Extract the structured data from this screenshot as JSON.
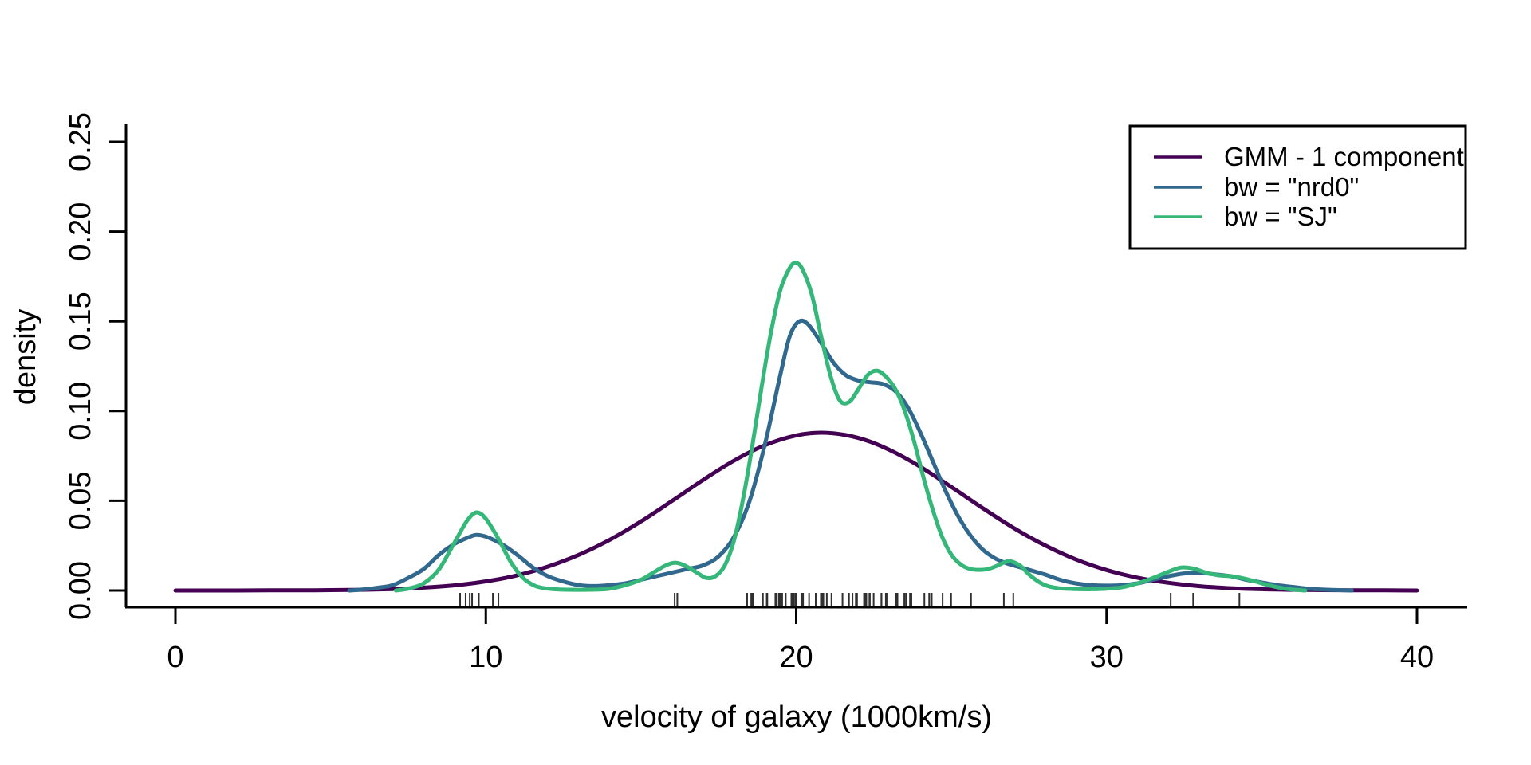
{
  "chart_data": {
    "type": "line",
    "title": "",
    "xlabel": "velocity of galaxy (1000km/s)",
    "ylabel": "density",
    "xlim": [
      0,
      40
    ],
    "ylim": [
      0,
      0.25
    ],
    "x_ticks": [
      0,
      10,
      20,
      30,
      40
    ],
    "y_ticks": [
      "0.00",
      "0.05",
      "0.10",
      "0.15",
      "0.20",
      "0.25"
    ],
    "grid": false,
    "legend_position": "top-right",
    "series": [
      {
        "name": "GMM - 1 component",
        "color": "#440154",
        "points": [
          [
            0,
            0
          ],
          [
            1,
            0
          ],
          [
            2,
            0
          ],
          [
            3,
            0.0001
          ],
          [
            4,
            0.0001
          ],
          [
            5,
            0.0002
          ],
          [
            6,
            0.0004
          ],
          [
            7,
            0.0008
          ],
          [
            8,
            0.0016
          ],
          [
            9,
            0.0029
          ],
          [
            10,
            0.0051
          ],
          [
            11,
            0.0084
          ],
          [
            12,
            0.0133
          ],
          [
            13,
            0.0199
          ],
          [
            14,
            0.0283
          ],
          [
            15,
            0.0385
          ],
          [
            16,
            0.0499
          ],
          [
            17,
            0.0616
          ],
          [
            18,
            0.0724
          ],
          [
            19,
            0.081
          ],
          [
            20,
            0.0864
          ],
          [
            20.8,
            0.0879
          ],
          [
            21.6,
            0.0866
          ],
          [
            22.4,
            0.0828
          ],
          [
            23.2,
            0.0767
          ],
          [
            24,
            0.0689
          ],
          [
            25,
            0.0577
          ],
          [
            26,
            0.046
          ],
          [
            27,
            0.0349
          ],
          [
            28,
            0.0253
          ],
          [
            29,
            0.0174
          ],
          [
            30,
            0.0114
          ],
          [
            31,
            0.0071
          ],
          [
            32,
            0.0043
          ],
          [
            33,
            0.0024
          ],
          [
            34,
            0.0013
          ],
          [
            35,
            0.0007
          ],
          [
            36,
            0.0004
          ],
          [
            37,
            0.0002
          ],
          [
            38,
            0.0001
          ],
          [
            39,
            0.0001
          ],
          [
            40,
            0
          ]
        ]
      },
      {
        "name": "bw = \"nrd0\"",
        "color": "#31688E",
        "points": [
          [
            5.6,
            0
          ],
          [
            6,
            0.0005
          ],
          [
            6.5,
            0.0015
          ],
          [
            7,
            0.003
          ],
          [
            7.5,
            0.007
          ],
          [
            8,
            0.012
          ],
          [
            8.5,
            0.02
          ],
          [
            9,
            0.026
          ],
          [
            9.5,
            0.03
          ],
          [
            9.7,
            0.031
          ],
          [
            10,
            0.03
          ],
          [
            10.5,
            0.026
          ],
          [
            11,
            0.02
          ],
          [
            11.5,
            0.013
          ],
          [
            12,
            0.008
          ],
          [
            12.5,
            0.005
          ],
          [
            13,
            0.003
          ],
          [
            13.5,
            0.0025
          ],
          [
            14,
            0.003
          ],
          [
            14.5,
            0.004
          ],
          [
            15,
            0.006
          ],
          [
            15.5,
            0.008
          ],
          [
            16,
            0.01
          ],
          [
            16.5,
            0.012
          ],
          [
            17,
            0.014
          ],
          [
            17.5,
            0.019
          ],
          [
            18,
            0.03
          ],
          [
            18.5,
            0.05
          ],
          [
            19,
            0.082
          ],
          [
            19.5,
            0.121
          ],
          [
            19.8,
            0.142
          ],
          [
            20.1,
            0.15
          ],
          [
            20.4,
            0.148
          ],
          [
            20.8,
            0.138
          ],
          [
            21.2,
            0.127
          ],
          [
            21.6,
            0.12
          ],
          [
            22,
            0.117
          ],
          [
            22.4,
            0.116
          ],
          [
            22.8,
            0.115
          ],
          [
            23.2,
            0.111
          ],
          [
            23.6,
            0.102
          ],
          [
            24,
            0.088
          ],
          [
            24.4,
            0.072
          ],
          [
            24.8,
            0.056
          ],
          [
            25.2,
            0.042
          ],
          [
            25.6,
            0.031
          ],
          [
            26,
            0.023
          ],
          [
            26.4,
            0.018
          ],
          [
            26.8,
            0.015
          ],
          [
            27.2,
            0.013
          ],
          [
            27.6,
            0.011
          ],
          [
            28,
            0.009
          ],
          [
            28.5,
            0.006
          ],
          [
            29,
            0.004
          ],
          [
            29.5,
            0.003
          ],
          [
            30,
            0.0027
          ],
          [
            30.5,
            0.003
          ],
          [
            31,
            0.004
          ],
          [
            31.5,
            0.006
          ],
          [
            32,
            0.008
          ],
          [
            32.5,
            0.0095
          ],
          [
            33,
            0.0098
          ],
          [
            33.5,
            0.009
          ],
          [
            34,
            0.008
          ],
          [
            34.5,
            0.006
          ],
          [
            35,
            0.0045
          ],
          [
            35.5,
            0.003
          ],
          [
            36,
            0.002
          ],
          [
            36.5,
            0.001
          ],
          [
            37,
            0.0005
          ],
          [
            37.5,
            0.0002
          ],
          [
            37.9,
            0
          ]
        ]
      },
      {
        "name": "bw = \"SJ\"",
        "color": "#35B779",
        "points": [
          [
            7.1,
            0
          ],
          [
            7.5,
            0.001
          ],
          [
            8,
            0.004
          ],
          [
            8.5,
            0.012
          ],
          [
            9,
            0.027
          ],
          [
            9.4,
            0.039
          ],
          [
            9.7,
            0.0435
          ],
          [
            10,
            0.04
          ],
          [
            10.4,
            0.029
          ],
          [
            10.8,
            0.016
          ],
          [
            11.2,
            0.007
          ],
          [
            11.6,
            0.0025
          ],
          [
            12,
            0.001
          ],
          [
            12.5,
            0.0005
          ],
          [
            13,
            0.0004
          ],
          [
            13.5,
            0.0005
          ],
          [
            14,
            0.001
          ],
          [
            14.5,
            0.003
          ],
          [
            15,
            0.006
          ],
          [
            15.4,
            0.01
          ],
          [
            15.8,
            0.014
          ],
          [
            16.1,
            0.0155
          ],
          [
            16.4,
            0.014
          ],
          [
            16.8,
            0.01
          ],
          [
            17.1,
            0.007
          ],
          [
            17.4,
            0.008
          ],
          [
            17.7,
            0.014
          ],
          [
            18,
            0.028
          ],
          [
            18.3,
            0.052
          ],
          [
            18.6,
            0.082
          ],
          [
            18.9,
            0.115
          ],
          [
            19.2,
            0.145
          ],
          [
            19.5,
            0.168
          ],
          [
            19.8,
            0.18
          ],
          [
            20,
            0.1825
          ],
          [
            20.2,
            0.179
          ],
          [
            20.5,
            0.165
          ],
          [
            20.8,
            0.142
          ],
          [
            21.1,
            0.12
          ],
          [
            21.4,
            0.106
          ],
          [
            21.7,
            0.105
          ],
          [
            22,
            0.112
          ],
          [
            22.3,
            0.12
          ],
          [
            22.6,
            0.1225
          ],
          [
            22.9,
            0.119
          ],
          [
            23.2,
            0.112
          ],
          [
            23.5,
            0.1
          ],
          [
            23.8,
            0.083
          ],
          [
            24.1,
            0.063
          ],
          [
            24.4,
            0.045
          ],
          [
            24.7,
            0.03
          ],
          [
            25,
            0.02
          ],
          [
            25.3,
            0.0145
          ],
          [
            25.6,
            0.012
          ],
          [
            25.9,
            0.0115
          ],
          [
            26.2,
            0.012
          ],
          [
            26.5,
            0.014
          ],
          [
            26.85,
            0.0164
          ],
          [
            27.2,
            0.014
          ],
          [
            27.5,
            0.009
          ],
          [
            27.8,
            0.005
          ],
          [
            28.1,
            0.0025
          ],
          [
            28.5,
            0.0012
          ],
          [
            29,
            0.0008
          ],
          [
            29.5,
            0.0007
          ],
          [
            30,
            0.001
          ],
          [
            30.5,
            0.0018
          ],
          [
            31,
            0.004
          ],
          [
            31.5,
            0.007
          ],
          [
            32,
            0.0105
          ],
          [
            32.4,
            0.0128
          ],
          [
            32.8,
            0.0122
          ],
          [
            33.2,
            0.01
          ],
          [
            33.6,
            0.0085
          ],
          [
            34,
            0.008
          ],
          [
            34.4,
            0.0068
          ],
          [
            34.8,
            0.005
          ],
          [
            35.2,
            0.003
          ],
          [
            35.6,
            0.0015
          ],
          [
            36,
            0.0005
          ],
          [
            36.4,
            0
          ]
        ]
      }
    ],
    "rug": {
      "color": "#303030",
      "values": [
        9.172,
        9.35,
        9.483,
        9.558,
        9.775,
        10.227,
        10.406,
        16.084,
        16.17,
        18.419,
        18.552,
        18.6,
        18.927,
        19.052,
        19.07,
        19.33,
        19.343,
        19.349,
        19.44,
        19.473,
        19.529,
        19.541,
        19.547,
        19.663,
        19.846,
        19.856,
        19.863,
        19.914,
        19.918,
        19.973,
        19.989,
        20.166,
        20.175,
        20.179,
        20.196,
        20.215,
        20.221,
        20.415,
        20.629,
        20.795,
        20.821,
        20.846,
        20.875,
        20.986,
        21.137,
        21.492,
        21.701,
        21.814,
        21.921,
        21.96,
        22.185,
        22.209,
        22.242,
        22.249,
        22.314,
        22.374,
        22.495,
        22.746,
        22.747,
        22.888,
        22.914,
        23.206,
        23.241,
        23.263,
        23.484,
        23.538,
        23.542,
        23.666,
        23.706,
        23.711,
        24.129,
        24.285,
        24.289,
        24.366,
        24.717,
        24.99,
        25.633,
        26.69,
        26.995,
        32.065,
        32.789,
        34.279
      ]
    },
    "axis_color": "#000000"
  }
}
